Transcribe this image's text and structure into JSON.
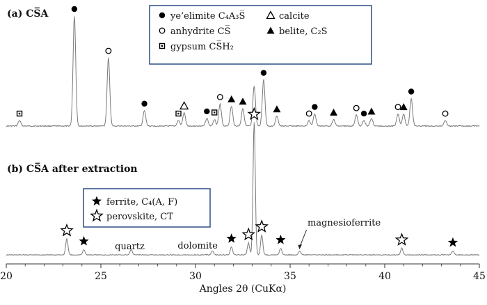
{
  "chart_data": {
    "type": "line",
    "xlabel": "Angles 2θ (CuKα)",
    "xlim": [
      20,
      45
    ],
    "x_ticks": [
      "20",
      "25",
      "30",
      "35",
      "40",
      "45"
    ],
    "panels": [
      {
        "label": "(a) CS̅A",
        "legend": [
          {
            "marker": "filled-circle",
            "label": "ye’elimite C₄A₃S̅"
          },
          {
            "marker": "open-circle",
            "label": "anhydrite CS̅"
          },
          {
            "marker": "dotted-square",
            "label": "gypsum   CS̅H₂"
          },
          {
            "marker": "open-triangle",
            "label": "calcite"
          },
          {
            "marker": "filled-triangle",
            "label": "belite, C₂S"
          }
        ],
        "peaks": [
          {
            "x": 20.7,
            "h": 0.05,
            "marker": "dotted-square"
          },
          {
            "x": 23.6,
            "h": 1.0,
            "marker": "filled-circle"
          },
          {
            "x": 25.4,
            "h": 0.62,
            "marker": "open-circle"
          },
          {
            "x": 27.3,
            "h": 0.14,
            "marker": "filled-circle"
          },
          {
            "x": 29.1,
            "h": 0.05,
            "marker": "dotted-square"
          },
          {
            "x": 29.4,
            "h": 0.12,
            "marker": "open-triangle"
          },
          {
            "x": 30.6,
            "h": 0.07,
            "marker": "filled-circle"
          },
          {
            "x": 31.0,
            "h": 0.06,
            "marker": "dotted-square"
          },
          {
            "x": 31.3,
            "h": 0.2,
            "marker": "open-circle"
          },
          {
            "x": 31.9,
            "h": 0.18,
            "marker": "filled-triangle"
          },
          {
            "x": 32.5,
            "h": 0.16,
            "marker": "filled-triangle"
          },
          {
            "x": 33.1,
            "h": 0.36,
            "marker": null
          },
          {
            "x": 33.6,
            "h": 0.42,
            "marker": "filled-circle"
          },
          {
            "x": 34.3,
            "h": 0.09,
            "marker": "filled-triangle"
          },
          {
            "x": 36.0,
            "h": 0.05,
            "marker": "open-circle"
          },
          {
            "x": 36.3,
            "h": 0.11,
            "marker": "filled-circle"
          },
          {
            "x": 37.3,
            "h": 0.06,
            "marker": "filled-triangle"
          },
          {
            "x": 38.5,
            "h": 0.1,
            "marker": "open-circle"
          },
          {
            "x": 38.9,
            "h": 0.05,
            "marker": "filled-circle"
          },
          {
            "x": 39.3,
            "h": 0.07,
            "marker": "filled-triangle"
          },
          {
            "x": 40.7,
            "h": 0.11,
            "marker": "open-circle"
          },
          {
            "x": 41.0,
            "h": 0.11,
            "marker": "filled-triangle"
          },
          {
            "x": 41.4,
            "h": 0.25,
            "marker": "filled-circle"
          },
          {
            "x": 43.2,
            "h": 0.05,
            "marker": "open-circle"
          }
        ]
      },
      {
        "label": "(b) CS̅A after extraction",
        "legend": [
          {
            "marker": "filled-star",
            "label": "ferrite, C₄(A, F)"
          },
          {
            "marker": "open-star",
            "label": "perovskite, CT"
          }
        ],
        "annotations": [
          {
            "text": "quartz",
            "x": 26.6
          },
          {
            "text": "dolomite",
            "x": 31.0
          },
          {
            "text": "magnesioferrite",
            "x": 35.5
          }
        ],
        "peaks": [
          {
            "x": 23.2,
            "h": 0.12,
            "marker": "open-star"
          },
          {
            "x": 24.1,
            "h": 0.04,
            "marker": "filled-star"
          },
          {
            "x": 26.6,
            "h": 0.04,
            "marker": null
          },
          {
            "x": 30.9,
            "h": 0.03,
            "marker": null
          },
          {
            "x": 31.9,
            "h": 0.06,
            "marker": "filled-star"
          },
          {
            "x": 32.8,
            "h": 0.09,
            "marker": "open-star"
          },
          {
            "x": 33.1,
            "h": 1.0,
            "marker": "open-star"
          },
          {
            "x": 33.5,
            "h": 0.15,
            "marker": "open-star"
          },
          {
            "x": 34.5,
            "h": 0.05,
            "marker": "filled-star"
          },
          {
            "x": 35.5,
            "h": 0.03,
            "marker": null
          },
          {
            "x": 40.9,
            "h": 0.05,
            "marker": "open-star"
          },
          {
            "x": 43.6,
            "h": 0.03,
            "marker": "filled-star"
          }
        ]
      }
    ]
  }
}
